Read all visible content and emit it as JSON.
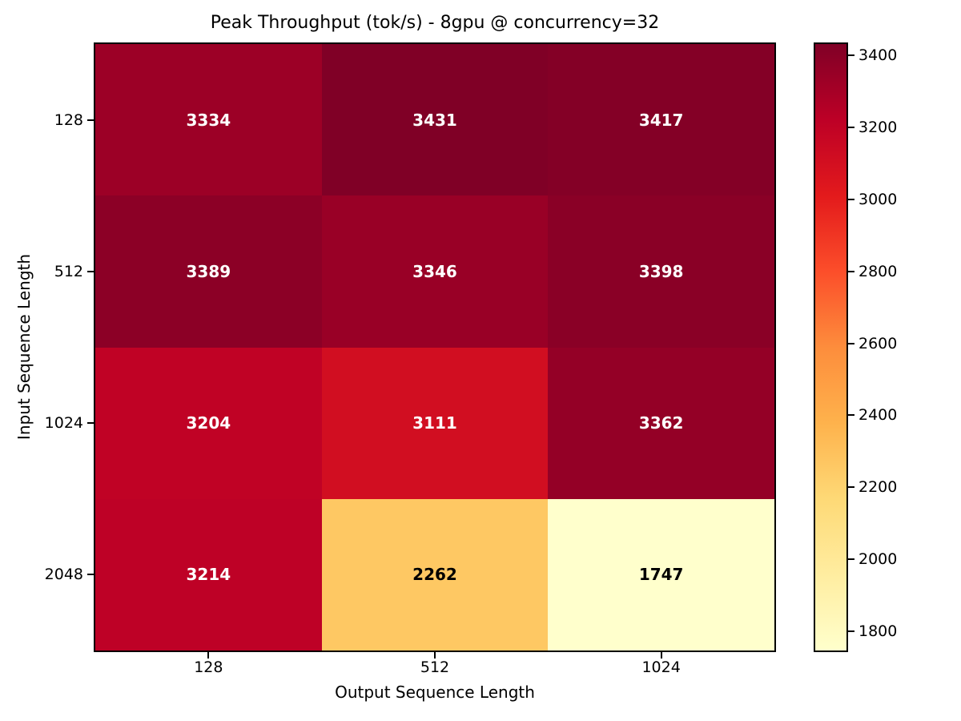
{
  "chart_data": {
    "type": "heatmap",
    "title": "Peak Throughput (tok/s) - 8gpu @ concurrency=32",
    "xlabel": "Output Sequence Length",
    "ylabel": "Input Sequence Length",
    "x_categories": [
      "128",
      "512",
      "1024"
    ],
    "y_categories": [
      "128",
      "512",
      "1024",
      "2048"
    ],
    "values": [
      [
        3334,
        3431,
        3417
      ],
      [
        3389,
        3346,
        3398
      ],
      [
        3204,
        3111,
        3362
      ],
      [
        3214,
        2262,
        1747
      ]
    ],
    "cell_colors": [
      [
        "#9C0026",
        "#800026",
        "#840026"
      ],
      [
        "#8C0026",
        "#990026",
        "#8A0026"
      ],
      [
        "#C00225",
        "#D10E21",
        "#940026"
      ],
      [
        "#BE0126",
        "#FEC863",
        "#FFFFCC"
      ]
    ],
    "cell_text_colors": [
      [
        "#ffffff",
        "#ffffff",
        "#ffffff"
      ],
      [
        "#ffffff",
        "#ffffff",
        "#ffffff"
      ],
      [
        "#ffffff",
        "#ffffff",
        "#ffffff"
      ],
      [
        "#ffffff",
        "#000000",
        "#000000"
      ]
    ],
    "colorbar": {
      "vmin": 1747,
      "vmax": 3431,
      "ticks": [
        3400,
        3200,
        3000,
        2800,
        2600,
        2400,
        2200,
        2000,
        1800
      ],
      "gradient_stops_top_to_bottom": [
        "#800026",
        "#bd0026",
        "#e31a1c",
        "#fc4e2a",
        "#fd8d3c",
        "#feb24c",
        "#fed976",
        "#ffeda0",
        "#ffffcc"
      ]
    },
    "grid": false,
    "legend_position": "right-colorbar"
  }
}
